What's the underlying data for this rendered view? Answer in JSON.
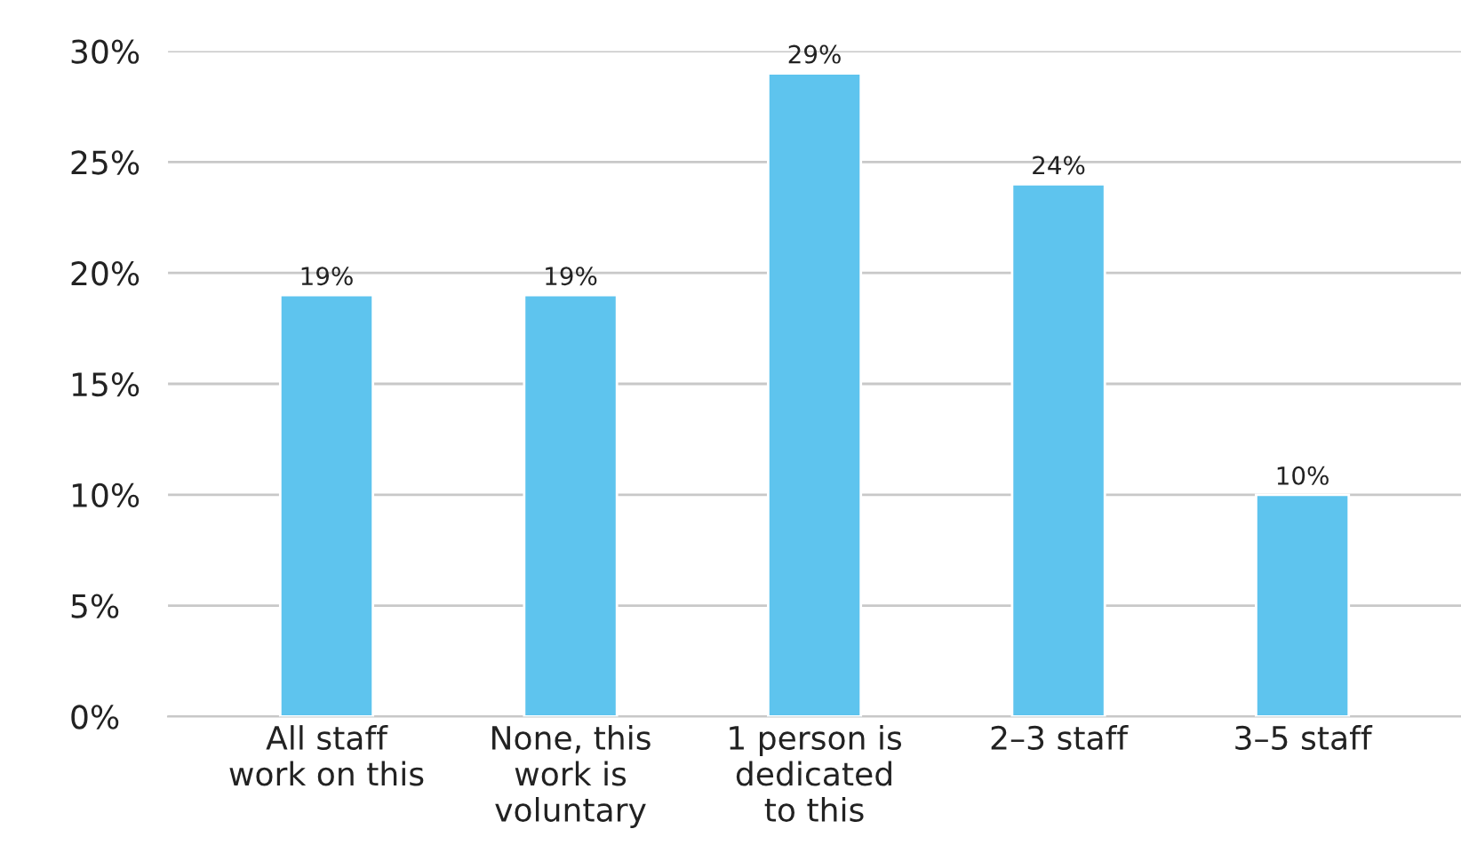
{
  "chart_data": {
    "type": "bar",
    "categories": [
      "All staff\nwork on this",
      "None, this\nwork is\nvoluntary",
      "1 person is\ndedicated\nto this",
      "2–3 staff",
      "3–5 staff"
    ],
    "values": [
      19,
      19,
      29,
      24,
      10
    ],
    "value_labels": [
      "19%",
      "19%",
      "29%",
      "24%",
      "10%"
    ],
    "color": "#5ec4ee",
    "ylim": [
      0,
      30
    ],
    "yticks": [
      {
        "value": 0,
        "label": "0%"
      },
      {
        "value": 5,
        "label": "5%"
      },
      {
        "value": 10,
        "label": "10%"
      },
      {
        "value": 15,
        "label": "15%"
      },
      {
        "value": 20,
        "label": "20%"
      },
      {
        "value": 25,
        "label": "25%"
      },
      {
        "value": 30,
        "label": "30%"
      }
    ],
    "grid": "y",
    "legend": false
  }
}
